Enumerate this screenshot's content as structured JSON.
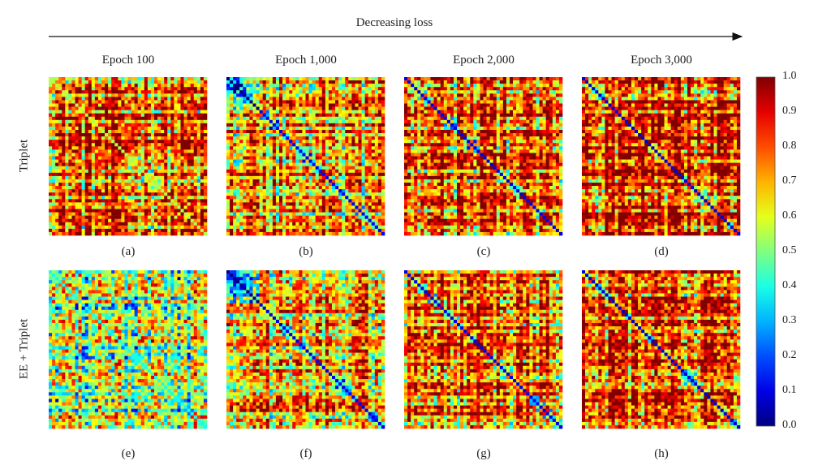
{
  "header": {
    "arrow_label": "Decreasing loss"
  },
  "rows": [
    "Triplet",
    "EE + Triplet"
  ],
  "columns": [
    "Epoch 100",
    "Epoch 1,000",
    "Epoch 2,000",
    "Epoch 3,000"
  ],
  "chart_data": {
    "type": "heatmap",
    "title": "Decreasing loss",
    "colormap": "jet",
    "value_range": [
      0.0,
      1.0
    ],
    "colorbar_ticks": [
      "1.0",
      "0.9",
      "0.8",
      "0.7",
      "0.6",
      "0.5",
      "0.4",
      "0.3",
      "0.2",
      "0.1",
      "0.0"
    ],
    "panels": [
      {
        "label": "(a)",
        "row": "Triplet",
        "column": "Epoch 100",
        "mean_value": 0.78,
        "diagonal_value": 0.55
      },
      {
        "label": "(b)",
        "row": "Triplet",
        "column": "Epoch 1,000",
        "mean_value": 0.72,
        "diagonal_value": 0.12
      },
      {
        "label": "(c)",
        "row": "Triplet",
        "column": "Epoch 2,000",
        "mean_value": 0.8,
        "diagonal_value": 0.1
      },
      {
        "label": "(d)",
        "row": "Triplet",
        "column": "Epoch 3,000",
        "mean_value": 0.86,
        "diagonal_value": 0.08
      },
      {
        "label": "(e)",
        "row": "EE + Triplet",
        "column": "Epoch 100",
        "mean_value": 0.6,
        "diagonal_value": 0.45
      },
      {
        "label": "(f)",
        "row": "EE + Triplet",
        "column": "Epoch 1,000",
        "mean_value": 0.7,
        "diagonal_value": 0.1
      },
      {
        "label": "(g)",
        "row": "EE + Triplet",
        "column": "Epoch 2,000",
        "mean_value": 0.76,
        "diagonal_value": 0.1
      },
      {
        "label": "(h)",
        "row": "EE + Triplet",
        "column": "Epoch 3,000",
        "mean_value": 0.82,
        "diagonal_value": 0.08
      }
    ]
  }
}
